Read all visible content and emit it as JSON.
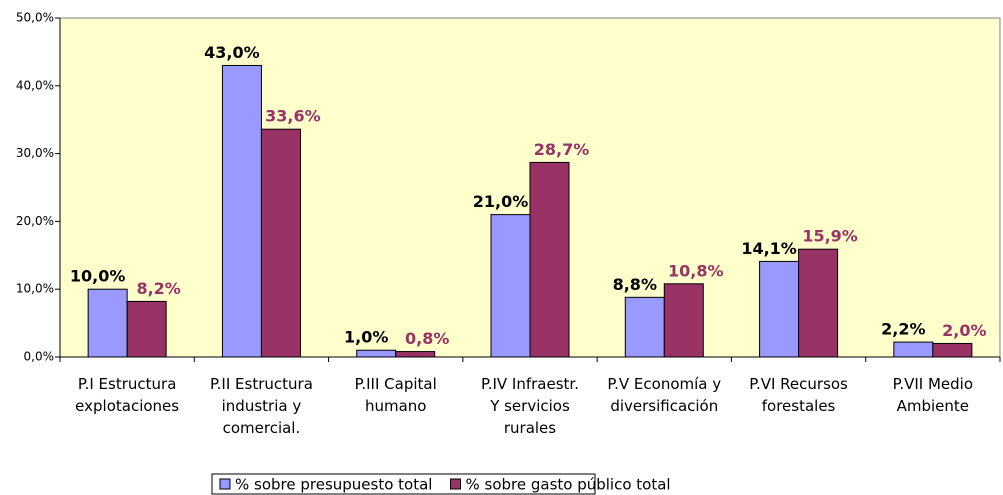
{
  "chart_data": {
    "type": "bar",
    "categories": [
      "P.I Estructura\nexplotaciones",
      "P.II Estructura\nindustria y\ncomercial.",
      "P.III Capital\nhumano",
      "P.IV Infraestr.\nY servicios\nrurales",
      "P.V Economía y\ndiversificación",
      "P.VI Recursos\nforestales",
      "P.VII Medio\nAmbiente"
    ],
    "series": [
      {
        "name": "% sobre presupuesto total",
        "color": "#9999ff",
        "label_color": "#000000",
        "values": [
          10.0,
          43.0,
          1.0,
          21.0,
          8.8,
          14.1,
          2.2
        ],
        "value_labels": [
          "10,0%",
          "43,0%",
          "1,0%",
          "21,0%",
          "8,8%",
          "14,1%",
          "2,2%"
        ]
      },
      {
        "name": "% sobre gasto público total",
        "color": "#993366",
        "label_color": "#993366",
        "values": [
          8.2,
          33.6,
          0.8,
          28.7,
          10.8,
          15.9,
          2.0
        ],
        "value_labels": [
          "8,2%",
          "33,6%",
          "0,8%",
          "28,7%",
          "10,8%",
          "15,9%",
          "2,0%"
        ]
      }
    ],
    "ylim": [
      0,
      50
    ],
    "yticks": [
      {
        "value": 0,
        "label": "0,0%"
      },
      {
        "value": 10,
        "label": "10,0%"
      },
      {
        "value": 20,
        "label": "20,0%"
      },
      {
        "value": 30,
        "label": "30,0%"
      },
      {
        "value": 40,
        "label": "40,0%"
      },
      {
        "value": 50,
        "label": "50,0%"
      }
    ],
    "grid": false,
    "background": "#ffffcc",
    "legend": "bottom"
  }
}
